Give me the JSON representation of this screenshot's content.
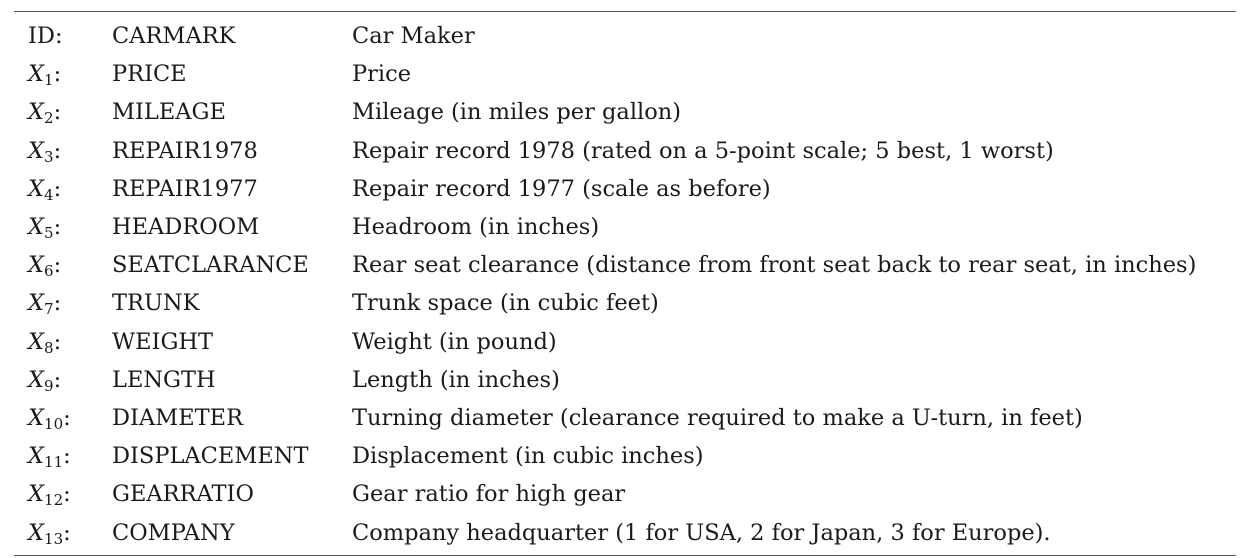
{
  "rows": [
    {
      "id_sym": "ID",
      "id_sub": "",
      "code": "CARMARK",
      "desc": "Car Maker"
    },
    {
      "id_sym": "X",
      "id_sub": "1",
      "code": "PRICE",
      "desc": "Price"
    },
    {
      "id_sym": "X",
      "id_sub": "2",
      "code": "MILEAGE",
      "desc": "Mileage (in miles per gallon)"
    },
    {
      "id_sym": "X",
      "id_sub": "3",
      "code": "REPAIR1978",
      "desc": "Repair record 1978 (rated on a 5-point scale; 5 best, 1 worst)"
    },
    {
      "id_sym": "X",
      "id_sub": "4",
      "code": "REPAIR1977",
      "desc": "Repair record 1977 (scale as before)"
    },
    {
      "id_sym": "X",
      "id_sub": "5",
      "code": "HEADROOM",
      "desc": "Headroom (in inches)"
    },
    {
      "id_sym": "X",
      "id_sub": "6",
      "code": "SEATCLARANCE",
      "desc": "Rear seat clearance (distance from front seat back to rear seat, in inches)"
    },
    {
      "id_sym": "X",
      "id_sub": "7",
      "code": "TRUNK",
      "desc": "Trunk space (in cubic feet)"
    },
    {
      "id_sym": "X",
      "id_sub": "8",
      "code": "WEIGHT",
      "desc": "Weight (in pound)"
    },
    {
      "id_sym": "X",
      "id_sub": "9",
      "code": "LENGTH",
      "desc": "Length (in inches)"
    },
    {
      "id_sym": "X",
      "id_sub": "10",
      "code": "DIAMETER",
      "desc": "Turning diameter (clearance required to make a U-turn, in feet)"
    },
    {
      "id_sym": "X",
      "id_sub": "11",
      "code": "DISPLACEMENT",
      "desc": "Displacement (in cubic inches)"
    },
    {
      "id_sym": "X",
      "id_sub": "12",
      "code": "GEARRATIO",
      "desc": "Gear ratio for high gear"
    },
    {
      "id_sym": "X",
      "id_sub": "13",
      "code": "COMPANY",
      "desc": "Company headquarter (1 for USA, 2 for Japan, 3 for Europe)."
    }
  ]
}
